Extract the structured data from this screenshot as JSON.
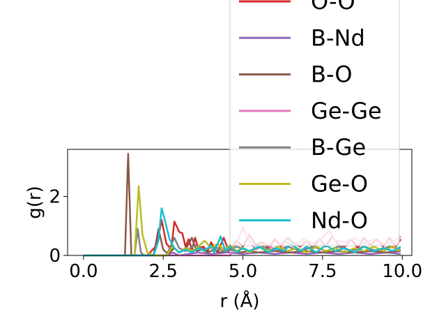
{
  "chart_data": {
    "type": "line",
    "xlabel": "r (Å)",
    "ylabel": "g(r)",
    "xlim": [
      -0.5,
      10.3
    ],
    "ylim": [
      0,
      3.6
    ],
    "xticks": [
      "0.0",
      "2.5",
      "5.0",
      "7.5",
      "10.0"
    ],
    "yticks": [
      "0",
      "2"
    ],
    "grid": false,
    "legend_position": "upper-right (overflowing above plot)",
    "series": [
      {
        "name": "O-O",
        "color": "#d62728",
        "points": [
          [
            0,
            0
          ],
          [
            2.0,
            0
          ],
          [
            2.3,
            0.35
          ],
          [
            2.45,
            1.2
          ],
          [
            2.6,
            0.4
          ],
          [
            2.75,
            0.2
          ],
          [
            2.85,
            1.15
          ],
          [
            3.0,
            0.8
          ],
          [
            3.1,
            0.75
          ],
          [
            3.2,
            0.3
          ],
          [
            3.3,
            0.55
          ],
          [
            3.4,
            0.2
          ],
          [
            3.5,
            0.6
          ],
          [
            3.6,
            0.25
          ],
          [
            3.75,
            0.3
          ],
          [
            3.9,
            0.15
          ],
          [
            4.0,
            0.45
          ],
          [
            4.2,
            0.1
          ],
          [
            4.4,
            0.6
          ],
          [
            4.55,
            0.15
          ],
          [
            4.8,
            0.5
          ],
          [
            5.0,
            0.3
          ],
          [
            5.2,
            0.7
          ],
          [
            5.4,
            0.35
          ],
          [
            5.6,
            0.45
          ],
          [
            5.8,
            0.25
          ],
          [
            6.0,
            0.55
          ],
          [
            6.2,
            0.3
          ],
          [
            6.4,
            0.6
          ],
          [
            6.6,
            0.4
          ],
          [
            6.8,
            0.3
          ],
          [
            7.0,
            0.5
          ],
          [
            7.2,
            0.25
          ],
          [
            7.4,
            0.55
          ],
          [
            7.6,
            0.3
          ],
          [
            7.8,
            0.65
          ],
          [
            8.0,
            0.35
          ],
          [
            8.2,
            0.3
          ],
          [
            8.4,
            0.55
          ],
          [
            8.6,
            0.25
          ],
          [
            8.8,
            0.6
          ],
          [
            9.0,
            0.35
          ],
          [
            9.2,
            0.55
          ],
          [
            9.4,
            0.3
          ],
          [
            9.6,
            0.6
          ],
          [
            9.8,
            0.3
          ],
          [
            9.95,
            0.55
          ]
        ]
      },
      {
        "name": "B-Nd",
        "color": "#9467bd",
        "points": [
          [
            0,
            0
          ],
          [
            2.6,
            0
          ],
          [
            2.8,
            0.1
          ],
          [
            3.0,
            0
          ],
          [
            3.3,
            0.05
          ],
          [
            3.6,
            0.1
          ],
          [
            4.0,
            0.05
          ],
          [
            4.5,
            0.1
          ],
          [
            5.0,
            0.05
          ],
          [
            5.5,
            0.1
          ],
          [
            6.0,
            0.05
          ],
          [
            6.5,
            0.1
          ],
          [
            7.0,
            0.05
          ],
          [
            7.5,
            0.1
          ],
          [
            8.0,
            0.05
          ],
          [
            8.5,
            0.1
          ],
          [
            9.0,
            0.05
          ],
          [
            9.5,
            0.1
          ],
          [
            9.95,
            0.05
          ]
        ]
      },
      {
        "name": "B-O",
        "color": "#8c564b",
        "points": [
          [
            0,
            0
          ],
          [
            1.3,
            0
          ],
          [
            1.4,
            3.45
          ],
          [
            1.5,
            0
          ],
          [
            1.6,
            0
          ],
          [
            2.2,
            0
          ],
          [
            2.35,
            0.9
          ],
          [
            2.5,
            0.2
          ],
          [
            2.65,
            0.05
          ],
          [
            2.85,
            0.25
          ],
          [
            3.0,
            0.1
          ],
          [
            3.2,
            0.2
          ],
          [
            3.4,
            0.6
          ],
          [
            3.55,
            0.15
          ],
          [
            3.7,
            0.2
          ],
          [
            3.9,
            0.1
          ],
          [
            4.1,
            0.2
          ],
          [
            4.3,
            0.1
          ],
          [
            4.6,
            0.2
          ],
          [
            4.9,
            0.1
          ],
          [
            5.2,
            0.15
          ],
          [
            5.5,
            0.1
          ],
          [
            6.0,
            0.15
          ],
          [
            6.5,
            0.1
          ],
          [
            7.0,
            0.15
          ],
          [
            7.5,
            0.1
          ],
          [
            8.0,
            0.15
          ],
          [
            8.5,
            0.1
          ],
          [
            9.0,
            0.15
          ],
          [
            9.5,
            0.1
          ],
          [
            9.95,
            0.15
          ]
        ]
      },
      {
        "name": "Ge-Ge",
        "color": "#e377c2",
        "points": [
          [
            0,
            0
          ],
          [
            4.6,
            0
          ],
          [
            4.8,
            0.4
          ],
          [
            5.0,
            0.95
          ],
          [
            5.2,
            0.5
          ],
          [
            5.4,
            0.2
          ],
          [
            5.7,
            0.4
          ],
          [
            6.0,
            0.2
          ],
          [
            6.3,
            0.5
          ],
          [
            6.6,
            0.3
          ],
          [
            6.9,
            0.55
          ],
          [
            7.2,
            0.4
          ],
          [
            7.5,
            0.6
          ],
          [
            7.7,
            0.85
          ],
          [
            7.9,
            0.5
          ],
          [
            8.2,
            0.45
          ],
          [
            8.5,
            0.6
          ],
          [
            8.8,
            0.4
          ],
          [
            9.1,
            0.55
          ],
          [
            9.4,
            0.4
          ],
          [
            9.7,
            0.45
          ],
          [
            9.95,
            0.65
          ]
        ]
      },
      {
        "name": "B-Ge",
        "color": "#7f7f7f",
        "points": [
          [
            0,
            0
          ],
          [
            1.6,
            0
          ],
          [
            1.7,
            0.9
          ],
          [
            1.8,
            0.1
          ],
          [
            1.9,
            0
          ],
          [
            2.6,
            0
          ],
          [
            2.85,
            0.6
          ],
          [
            3.0,
            0.25
          ],
          [
            3.2,
            0.15
          ],
          [
            3.5,
            0.35
          ],
          [
            3.8,
            0.2
          ],
          [
            4.1,
            0.3
          ],
          [
            4.4,
            0.15
          ],
          [
            4.8,
            0.3
          ],
          [
            5.2,
            0.15
          ],
          [
            5.6,
            0.3
          ],
          [
            6.0,
            0.15
          ],
          [
            6.4,
            0.3
          ],
          [
            6.8,
            0.15
          ],
          [
            7.2,
            0.3
          ],
          [
            7.6,
            0.15
          ],
          [
            8.0,
            0.3
          ],
          [
            8.4,
            0.15
          ],
          [
            8.8,
            0.3
          ],
          [
            9.2,
            0.15
          ],
          [
            9.6,
            0.3
          ],
          [
            9.95,
            0.2
          ]
        ]
      },
      {
        "name": "Ge-O",
        "color": "#bcbd22",
        "points": [
          [
            0,
            0
          ],
          [
            1.6,
            0
          ],
          [
            1.73,
            2.35
          ],
          [
            1.85,
            0.7
          ],
          [
            2.0,
            0.1
          ],
          [
            2.2,
            0
          ],
          [
            2.6,
            0
          ],
          [
            2.8,
            0.3
          ],
          [
            3.0,
            0.1
          ],
          [
            3.2,
            0.25
          ],
          [
            3.4,
            0.15
          ],
          [
            3.6,
            0.3
          ],
          [
            3.8,
            0.5
          ],
          [
            4.0,
            0.25
          ],
          [
            4.2,
            0.4
          ],
          [
            4.4,
            0.2
          ],
          [
            4.6,
            0.35
          ],
          [
            4.8,
            0.15
          ],
          [
            5.0,
            0.25
          ],
          [
            5.2,
            0.1
          ],
          [
            5.5,
            0.3
          ],
          [
            5.8,
            0.15
          ],
          [
            6.1,
            0.3
          ],
          [
            6.4,
            0.15
          ],
          [
            6.7,
            0.25
          ],
          [
            7.0,
            0.1
          ],
          [
            7.3,
            0.3
          ],
          [
            7.6,
            0.15
          ],
          [
            7.9,
            0.25
          ],
          [
            8.2,
            0.1
          ],
          [
            8.5,
            0.25
          ],
          [
            8.8,
            0.15
          ],
          [
            9.1,
            0.3
          ],
          [
            9.4,
            0.15
          ],
          [
            9.7,
            0.3
          ],
          [
            9.95,
            0.15
          ]
        ]
      },
      {
        "name": "Nd-O",
        "color": "#17becf",
        "points": [
          [
            0,
            0
          ],
          [
            2.2,
            0
          ],
          [
            2.35,
            0.5
          ],
          [
            2.45,
            1.6
          ],
          [
            2.55,
            1.2
          ],
          [
            2.7,
            0.55
          ],
          [
            2.85,
            0.25
          ],
          [
            3.0,
            0.1
          ],
          [
            3.2,
            0.2
          ],
          [
            3.4,
            0.1
          ],
          [
            3.6,
            0.25
          ],
          [
            3.8,
            0.15
          ],
          [
            4.0,
            0.35
          ],
          [
            4.1,
            0.1
          ],
          [
            4.3,
            0.65
          ],
          [
            4.45,
            0.15
          ],
          [
            4.6,
            0.3
          ],
          [
            4.8,
            0.1
          ],
          [
            5.0,
            0.25
          ],
          [
            5.2,
            0.15
          ],
          [
            5.5,
            0.3
          ],
          [
            5.8,
            0.1
          ],
          [
            6.0,
            0.25
          ],
          [
            6.3,
            0.15
          ],
          [
            6.5,
            0.4
          ],
          [
            6.8,
            0.15
          ],
          [
            7.0,
            0.3
          ],
          [
            7.3,
            0.1
          ],
          [
            7.6,
            0.35
          ],
          [
            7.9,
            0.15
          ],
          [
            8.2,
            0.25
          ],
          [
            8.5,
            0.1
          ],
          [
            8.8,
            0.3
          ],
          [
            9.1,
            0.15
          ],
          [
            9.4,
            0.25
          ],
          [
            9.7,
            0.15
          ],
          [
            9.95,
            0.3
          ]
        ]
      }
    ]
  }
}
